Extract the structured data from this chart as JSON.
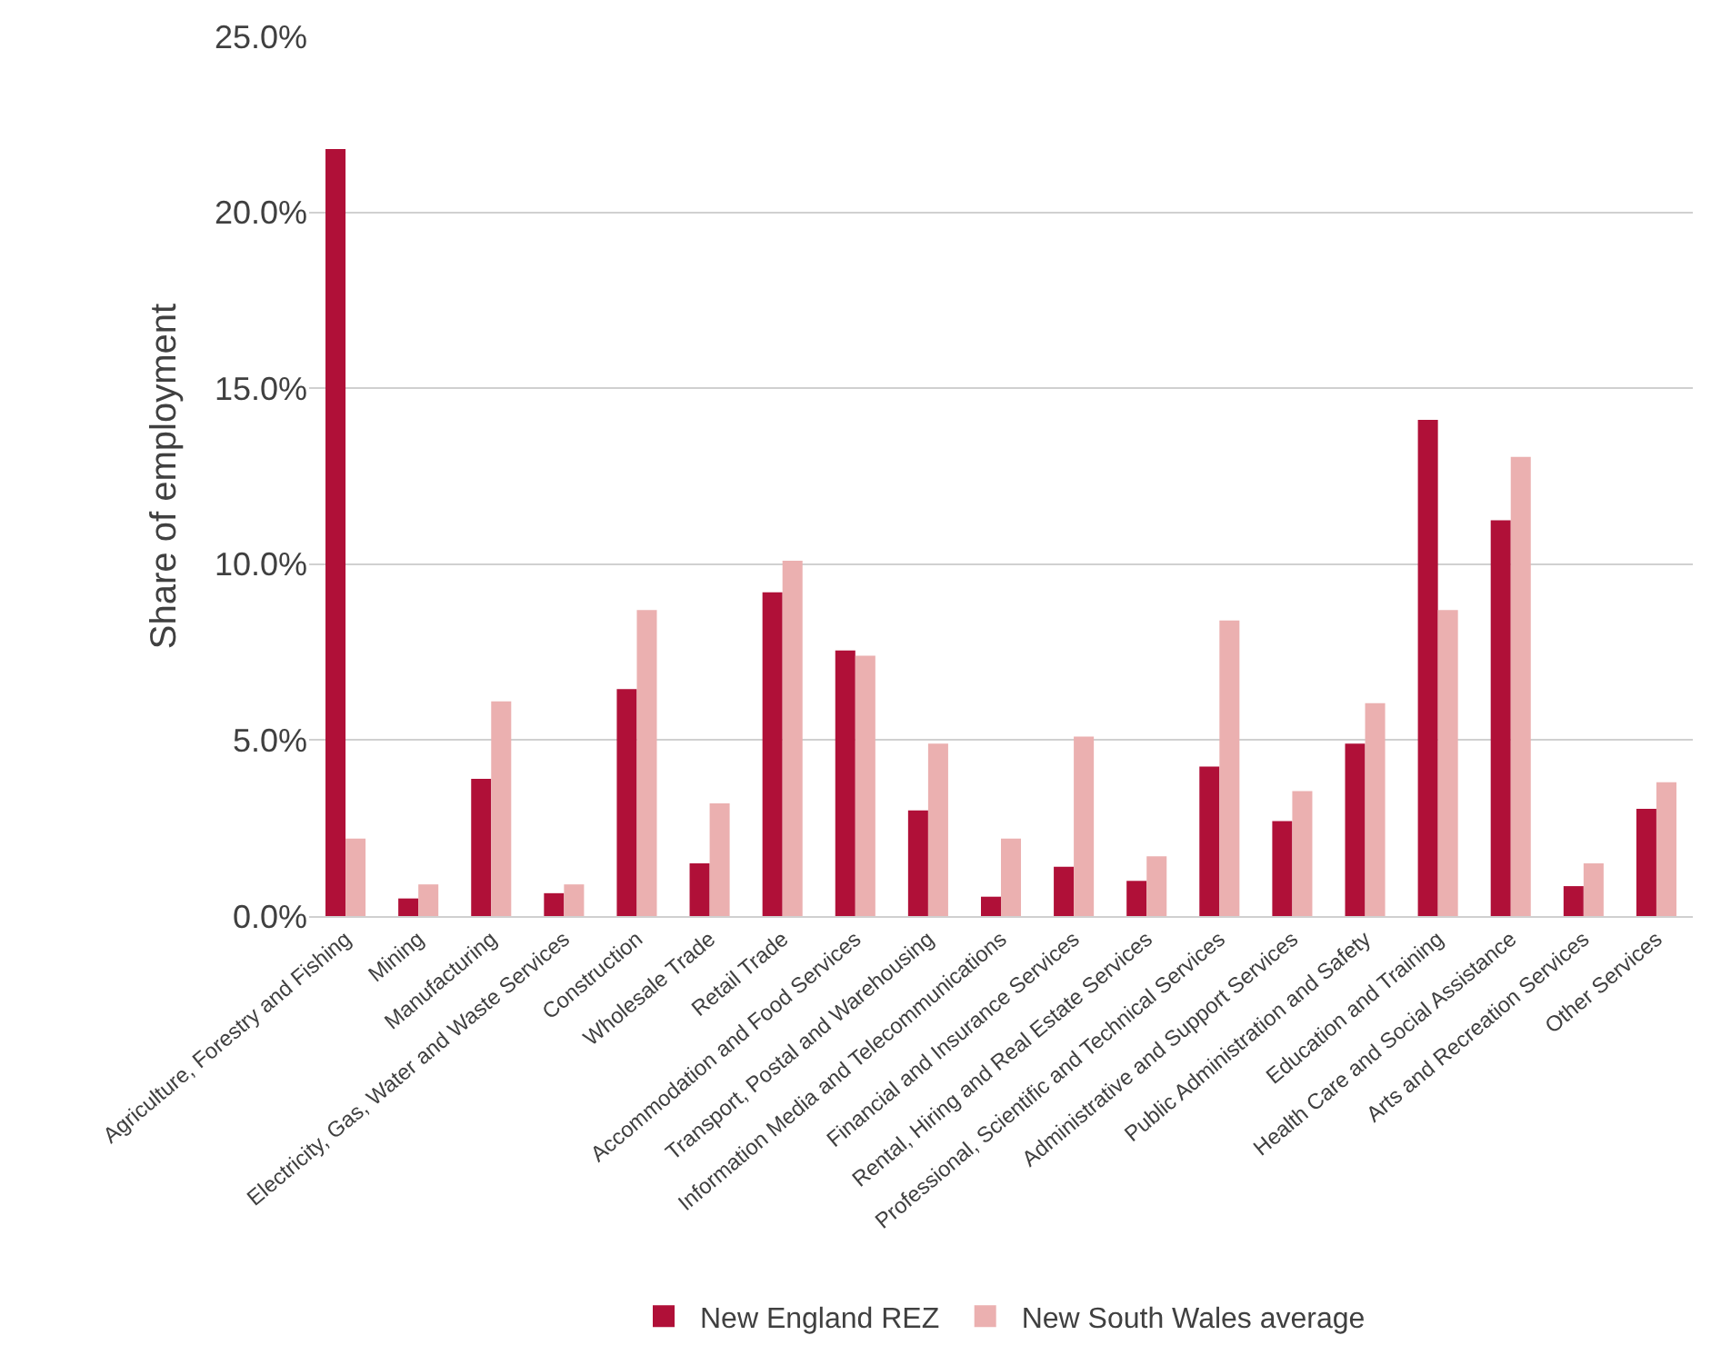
{
  "chart_data": {
    "type": "bar",
    "ylabel": "Share of employment",
    "categories": [
      "Agriculture, Forestry and Fishing",
      "Mining",
      "Manufacturing",
      "Electricity, Gas, Water and Waste Services",
      "Construction",
      "Wholesale Trade",
      "Retail Trade",
      "Accommodation and Food Services",
      "Transport, Postal and Warehousing",
      "Information Media and Telecommunications",
      "Financial and Insurance Services",
      "Rental, Hiring and Real Estate Services",
      "Professional, Scientific and Technical Services",
      "Administrative and Support Services",
      "Public Administration and Safety",
      "Education and Training",
      "Health Care and Social Assistance",
      "Arts and Recreation Services",
      "Other Services"
    ],
    "series": [
      {
        "name": "New England REZ",
        "color": "#b01038",
        "values": [
          21.8,
          0.5,
          3.9,
          0.65,
          6.45,
          1.5,
          9.2,
          7.55,
          3.0,
          0.55,
          1.4,
          1.0,
          4.25,
          2.7,
          4.9,
          14.1,
          11.25,
          0.85,
          3.05
        ]
      },
      {
        "name": "New South Wales average",
        "color": "#ebb0b0",
        "values": [
          2.2,
          0.9,
          6.1,
          0.9,
          8.7,
          3.2,
          10.1,
          7.4,
          4.9,
          2.2,
          5.1,
          1.7,
          8.4,
          3.55,
          6.05,
          8.7,
          13.05,
          1.5,
          3.8
        ]
      }
    ],
    "ylim": [
      0,
      25
    ],
    "yticks": [
      {
        "value": 0,
        "label": "0.0%"
      },
      {
        "value": 5,
        "label": "5.0%"
      },
      {
        "value": 10,
        "label": "10.0%"
      },
      {
        "value": 15,
        "label": "15.0%"
      },
      {
        "value": 20,
        "label": "20.0%"
      },
      {
        "value": 25,
        "label": "25.0%"
      }
    ],
    "grid": "y",
    "legend": "bottom"
  }
}
